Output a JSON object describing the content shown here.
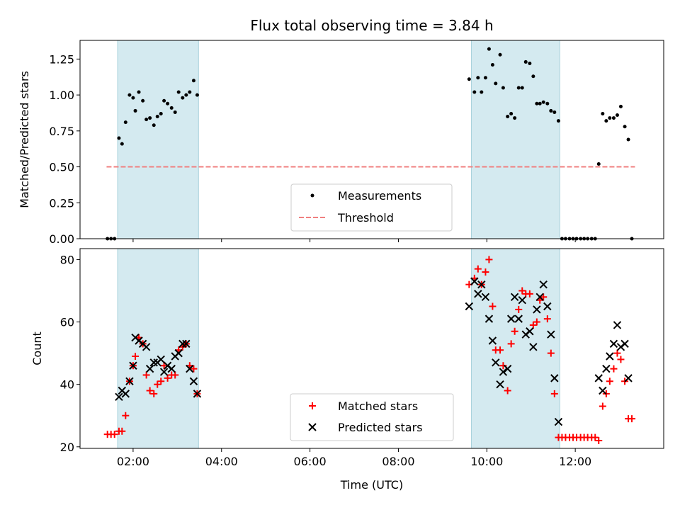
{
  "chart_data": [
    {
      "type": "scatter",
      "title": "Flux total observing time = 3.84 h",
      "xlabel": "",
      "ylabel": "Matched/Predicted stars",
      "xlim": [
        0.8,
        14.0
      ],
      "ylim": [
        0,
        1.38
      ],
      "yticks": [
        0,
        0.25,
        0.5,
        0.75,
        1.0,
        1.25
      ],
      "ytick_labels": [
        "0.00",
        "0.25",
        "0.50",
        "0.75",
        "1.00",
        "1.25"
      ],
      "legend_position": "lower-center",
      "shaded_intervals": [
        [
          1.65,
          3.48
        ],
        [
          9.65,
          11.65
        ]
      ],
      "shade_color": "#d4eaf0",
      "series": [
        {
          "name": "Measurements",
          "marker": "dot",
          "color": "#000000",
          "points": [
            [
              1.42,
              0
            ],
            [
              1.5,
              0
            ],
            [
              1.58,
              0
            ],
            [
              1.68,
              0.7
            ],
            [
              1.75,
              0.66
            ],
            [
              1.83,
              0.81
            ],
            [
              1.92,
              1.0
            ],
            [
              2.0,
              0.98
            ],
            [
              2.05,
              0.89
            ],
            [
              2.13,
              1.02
            ],
            [
              2.22,
              0.96
            ],
            [
              2.3,
              0.83
            ],
            [
              2.38,
              0.84
            ],
            [
              2.47,
              0.79
            ],
            [
              2.55,
              0.85
            ],
            [
              2.63,
              0.87
            ],
            [
              2.7,
              0.96
            ],
            [
              2.78,
              0.94
            ],
            [
              2.87,
              0.91
            ],
            [
              2.95,
              0.88
            ],
            [
              3.03,
              1.02
            ],
            [
              3.12,
              0.98
            ],
            [
              3.2,
              1.0
            ],
            [
              3.28,
              1.02
            ],
            [
              3.37,
              1.1
            ],
            [
              3.45,
              1.0
            ],
            [
              9.6,
              1.11
            ],
            [
              9.72,
              1.02
            ],
            [
              9.8,
              1.12
            ],
            [
              9.88,
              1.02
            ],
            [
              9.97,
              1.12
            ],
            [
              10.05,
              1.32
            ],
            [
              10.13,
              1.21
            ],
            [
              10.2,
              1.08
            ],
            [
              10.3,
              1.28
            ],
            [
              10.37,
              1.05
            ],
            [
              10.47,
              0.85
            ],
            [
              10.55,
              0.87
            ],
            [
              10.63,
              0.84
            ],
            [
              10.72,
              1.05
            ],
            [
              10.8,
              1.05
            ],
            [
              10.88,
              1.23
            ],
            [
              10.97,
              1.22
            ],
            [
              11.05,
              1.13
            ],
            [
              11.13,
              0.94
            ],
            [
              11.2,
              0.94
            ],
            [
              11.28,
              0.95
            ],
            [
              11.37,
              0.94
            ],
            [
              11.45,
              0.89
            ],
            [
              11.53,
              0.88
            ],
            [
              11.62,
              0.82
            ],
            [
              11.7,
              0
            ],
            [
              11.78,
              0
            ],
            [
              11.87,
              0
            ],
            [
              11.95,
              0
            ],
            [
              12.03,
              0
            ],
            [
              12.12,
              0
            ],
            [
              12.2,
              0
            ],
            [
              12.28,
              0
            ],
            [
              12.37,
              0
            ],
            [
              12.45,
              0
            ],
            [
              12.53,
              0.52
            ],
            [
              12.62,
              0.87
            ],
            [
              12.7,
              0.82
            ],
            [
              12.78,
              0.84
            ],
            [
              12.87,
              0.84
            ],
            [
              12.95,
              0.86
            ],
            [
              13.03,
              0.92
            ],
            [
              13.12,
              0.78
            ],
            [
              13.2,
              0.69
            ],
            [
              13.28,
              0
            ]
          ]
        },
        {
          "name": "Threshold",
          "style": "dashed",
          "color": "#f08080",
          "points": [
            [
              1.4,
              0.5
            ],
            [
              13.35,
              0.5
            ]
          ]
        }
      ]
    },
    {
      "type": "scatter",
      "title": "",
      "xlabel": "Time (UTC)",
      "ylabel": "Count",
      "xlim": [
        0.8,
        14.0
      ],
      "ylim": [
        19.5,
        83.5
      ],
      "xticks": [
        2,
        4,
        6,
        8,
        10,
        12
      ],
      "xtick_labels": [
        "02:00",
        "04:00",
        "06:00",
        "08:00",
        "10:00",
        "12:00"
      ],
      "yticks": [
        20,
        40,
        60,
        80
      ],
      "ytick_labels": [
        "20",
        "40",
        "60",
        "80"
      ],
      "legend_position": "lower-center",
      "shaded_intervals": [
        [
          1.65,
          3.48
        ],
        [
          9.65,
          11.65
        ]
      ],
      "shade_color": "#d4eaf0",
      "series": [
        {
          "name": "Matched stars",
          "marker": "plus",
          "color": "#ff0000",
          "points": [
            [
              1.42,
              24
            ],
            [
              1.5,
              24
            ],
            [
              1.58,
              24
            ],
            [
              1.68,
              25
            ],
            [
              1.75,
              25
            ],
            [
              1.83,
              30
            ],
            [
              1.92,
              41
            ],
            [
              2.0,
              46
            ],
            [
              2.05,
              49
            ],
            [
              2.13,
              55
            ],
            [
              2.22,
              53
            ],
            [
              2.3,
              43
            ],
            [
              2.38,
              38
            ],
            [
              2.47,
              37
            ],
            [
              2.55,
              40
            ],
            [
              2.63,
              41
            ],
            [
              2.7,
              46
            ],
            [
              2.78,
              42
            ],
            [
              2.87,
              43
            ],
            [
              2.95,
              43
            ],
            [
              3.03,
              51
            ],
            [
              3.12,
              52
            ],
            [
              3.2,
              53
            ],
            [
              3.28,
              46
            ],
            [
              3.37,
              45
            ],
            [
              3.45,
              37
            ],
            [
              9.6,
              72
            ],
            [
              9.72,
              74
            ],
            [
              9.8,
              77
            ],
            [
              9.88,
              72
            ],
            [
              9.97,
              76
            ],
            [
              10.05,
              80
            ],
            [
              10.13,
              65
            ],
            [
              10.2,
              51
            ],
            [
              10.3,
              51
            ],
            [
              10.37,
              46
            ],
            [
              10.47,
              38
            ],
            [
              10.55,
              53
            ],
            [
              10.63,
              57
            ],
            [
              10.72,
              64
            ],
            [
              10.8,
              70
            ],
            [
              10.88,
              69
            ],
            [
              10.97,
              69
            ],
            [
              11.05,
              59
            ],
            [
              11.13,
              60
            ],
            [
              11.2,
              67
            ],
            [
              11.28,
              68
            ],
            [
              11.37,
              61
            ],
            [
              11.45,
              50
            ],
            [
              11.53,
              37
            ],
            [
              11.62,
              23
            ],
            [
              11.7,
              23
            ],
            [
              11.78,
              23
            ],
            [
              11.87,
              23
            ],
            [
              11.95,
              23
            ],
            [
              12.03,
              23
            ],
            [
              12.12,
              23
            ],
            [
              12.2,
              23
            ],
            [
              12.28,
              23
            ],
            [
              12.37,
              23
            ],
            [
              12.45,
              23
            ],
            [
              12.53,
              22
            ],
            [
              12.62,
              33
            ],
            [
              12.7,
              37
            ],
            [
              12.78,
              41
            ],
            [
              12.87,
              45
            ],
            [
              12.95,
              50
            ],
            [
              13.03,
              48
            ],
            [
              13.12,
              41
            ],
            [
              13.2,
              29
            ],
            [
              13.28,
              29
            ]
          ]
        },
        {
          "name": "Predicted stars",
          "marker": "x",
          "color": "#000000",
          "points": [
            [
              1.68,
              36
            ],
            [
              1.75,
              38
            ],
            [
              1.83,
              37
            ],
            [
              1.92,
              41
            ],
            [
              2.0,
              46
            ],
            [
              2.05,
              55
            ],
            [
              2.13,
              54
            ],
            [
              2.22,
              53
            ],
            [
              2.3,
              52
            ],
            [
              2.38,
              45
            ],
            [
              2.47,
              47
            ],
            [
              2.55,
              47
            ],
            [
              2.63,
              48
            ],
            [
              2.7,
              44
            ],
            [
              2.78,
              46
            ],
            [
              2.87,
              45
            ],
            [
              2.95,
              49
            ],
            [
              3.03,
              50
            ],
            [
              3.12,
              53
            ],
            [
              3.2,
              53
            ],
            [
              3.28,
              45
            ],
            [
              3.37,
              41
            ],
            [
              3.45,
              37
            ],
            [
              9.6,
              65
            ],
            [
              9.72,
              73
            ],
            [
              9.8,
              69
            ],
            [
              9.88,
              72
            ],
            [
              9.97,
              68
            ],
            [
              10.05,
              61
            ],
            [
              10.13,
              54
            ],
            [
              10.2,
              47
            ],
            [
              10.3,
              40
            ],
            [
              10.37,
              44
            ],
            [
              10.47,
              45
            ],
            [
              10.55,
              61
            ],
            [
              10.63,
              68
            ],
            [
              10.72,
              61
            ],
            [
              10.8,
              67
            ],
            [
              10.88,
              56
            ],
            [
              10.97,
              57
            ],
            [
              11.05,
              52
            ],
            [
              11.13,
              64
            ],
            [
              11.2,
              68
            ],
            [
              11.28,
              72
            ],
            [
              11.37,
              65
            ],
            [
              11.45,
              56
            ],
            [
              11.53,
              42
            ],
            [
              11.62,
              28
            ],
            [
              12.53,
              42
            ],
            [
              12.62,
              38
            ],
            [
              12.7,
              45
            ],
            [
              12.78,
              49
            ],
            [
              12.87,
              53
            ],
            [
              12.95,
              59
            ],
            [
              13.03,
              52
            ],
            [
              13.12,
              53
            ],
            [
              13.2,
              42
            ]
          ]
        }
      ]
    }
  ]
}
